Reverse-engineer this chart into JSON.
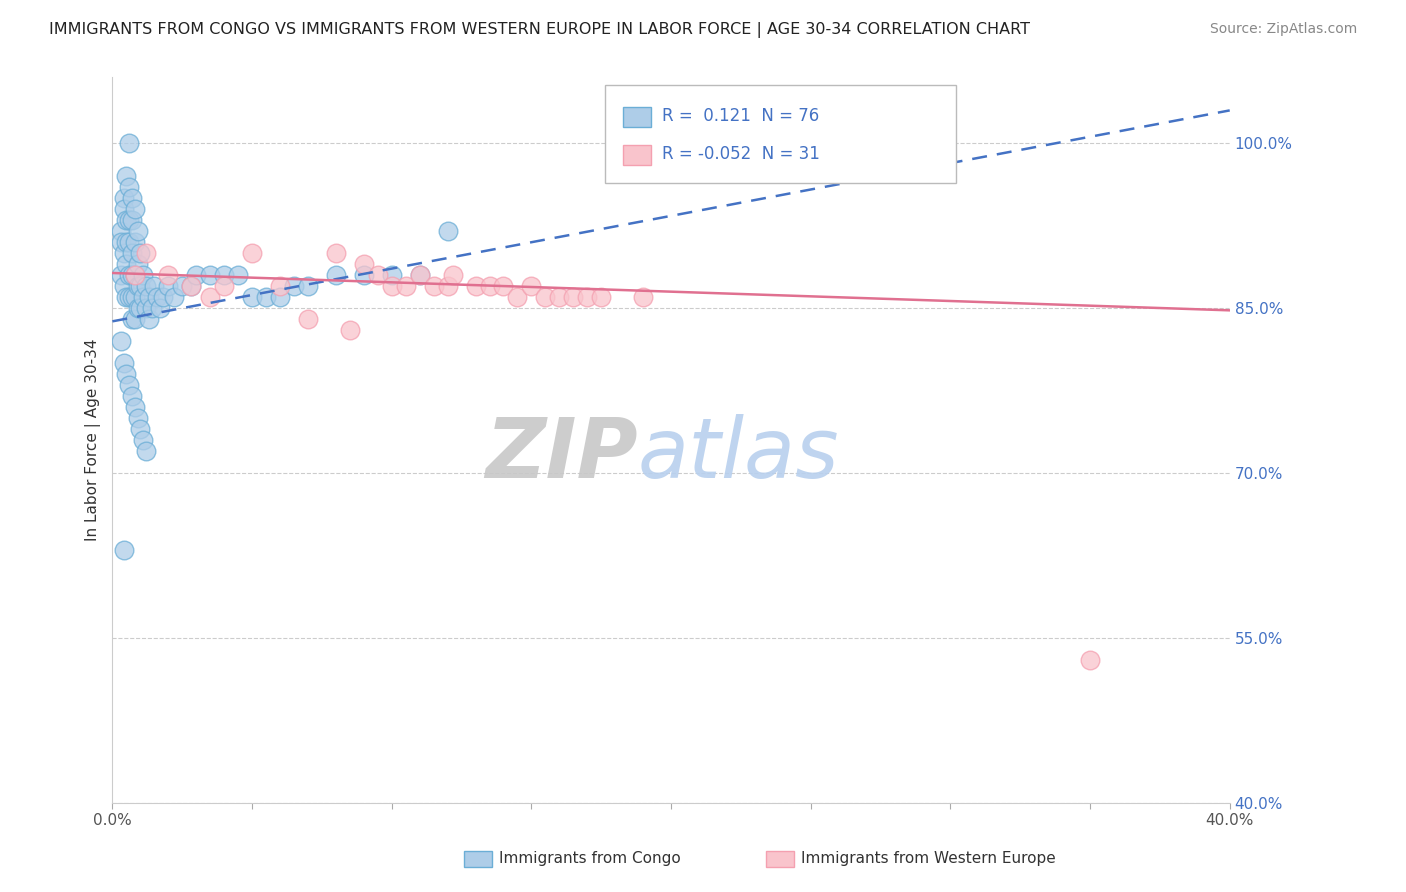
{
  "title": "IMMIGRANTS FROM CONGO VS IMMIGRANTS FROM WESTERN EUROPE IN LABOR FORCE | AGE 30-34 CORRELATION CHART",
  "source": "Source: ZipAtlas.com",
  "ylabel": "In Labor Force | Age 30-34",
  "xlim": [
    0.0,
    0.4
  ],
  "ylim": [
    0.4,
    1.06
  ],
  "xticks": [
    0.0,
    0.05,
    0.1,
    0.15,
    0.2,
    0.25,
    0.3,
    0.35,
    0.4
  ],
  "xticklabels": [
    "0.0%",
    "",
    "",
    "",
    "",
    "",
    "",
    "",
    "40.0%"
  ],
  "ytick_positions": [
    1.0,
    0.85,
    0.7,
    0.55,
    0.4
  ],
  "ytick_labels": [
    "100.0%",
    "85.0%",
    "70.0%",
    "55.0%",
    "40.0%"
  ],
  "grid_color": "#cccccc",
  "background_color": "#ffffff",
  "legend_R1": "0.121",
  "legend_N1": "76",
  "legend_R2": "-0.052",
  "legend_N2": "31",
  "legend_label1": "Immigrants from Congo",
  "legend_label2": "Immigrants from Western Europe",
  "blue_color": "#6baed6",
  "blue_fill": "#aecde8",
  "pink_color": "#f4a0b0",
  "pink_fill": "#f9c4cc",
  "trend_blue_color": "#4472c4",
  "trend_pink_color": "#e07090",
  "blue_scatter_x": [
    0.003,
    0.003,
    0.003,
    0.004,
    0.004,
    0.004,
    0.004,
    0.005,
    0.005,
    0.005,
    0.005,
    0.005,
    0.006,
    0.006,
    0.006,
    0.006,
    0.006,
    0.006,
    0.007,
    0.007,
    0.007,
    0.007,
    0.007,
    0.007,
    0.008,
    0.008,
    0.008,
    0.008,
    0.008,
    0.009,
    0.009,
    0.009,
    0.009,
    0.01,
    0.01,
    0.01,
    0.011,
    0.011,
    0.012,
    0.012,
    0.013,
    0.013,
    0.014,
    0.015,
    0.016,
    0.017,
    0.018,
    0.02,
    0.022,
    0.025,
    0.028,
    0.03,
    0.035,
    0.04,
    0.045,
    0.05,
    0.055,
    0.06,
    0.065,
    0.07,
    0.08,
    0.09,
    0.1,
    0.11,
    0.12,
    0.003,
    0.004,
    0.005,
    0.006,
    0.007,
    0.008,
    0.009,
    0.01,
    0.011,
    0.012,
    0.004
  ],
  "blue_scatter_y": [
    0.92,
    0.91,
    0.88,
    0.95,
    0.94,
    0.9,
    0.87,
    0.97,
    0.93,
    0.91,
    0.89,
    0.86,
    1.0,
    0.96,
    0.93,
    0.91,
    0.88,
    0.86,
    0.95,
    0.93,
    0.9,
    0.88,
    0.86,
    0.84,
    0.94,
    0.91,
    0.88,
    0.86,
    0.84,
    0.92,
    0.89,
    0.87,
    0.85,
    0.9,
    0.87,
    0.85,
    0.88,
    0.86,
    0.87,
    0.85,
    0.86,
    0.84,
    0.85,
    0.87,
    0.86,
    0.85,
    0.86,
    0.87,
    0.86,
    0.87,
    0.87,
    0.88,
    0.88,
    0.88,
    0.88,
    0.86,
    0.86,
    0.86,
    0.87,
    0.87,
    0.88,
    0.88,
    0.88,
    0.88,
    0.92,
    0.82,
    0.8,
    0.79,
    0.78,
    0.77,
    0.76,
    0.75,
    0.74,
    0.73,
    0.72,
    0.63
  ],
  "pink_scatter_x": [
    0.008,
    0.012,
    0.02,
    0.028,
    0.035,
    0.04,
    0.05,
    0.06,
    0.07,
    0.08,
    0.085,
    0.09,
    0.095,
    0.1,
    0.105,
    0.11,
    0.115,
    0.12,
    0.122,
    0.13,
    0.135,
    0.14,
    0.145,
    0.15,
    0.155,
    0.16,
    0.165,
    0.17,
    0.175,
    0.19,
    0.35
  ],
  "pink_scatter_y": [
    0.88,
    0.9,
    0.88,
    0.87,
    0.86,
    0.87,
    0.9,
    0.87,
    0.84,
    0.9,
    0.83,
    0.89,
    0.88,
    0.87,
    0.87,
    0.88,
    0.87,
    0.87,
    0.88,
    0.87,
    0.87,
    0.87,
    0.86,
    0.87,
    0.86,
    0.86,
    0.86,
    0.86,
    0.86,
    0.86,
    0.53
  ],
  "trend_blue_x0": 0.0,
  "trend_blue_y0": 0.838,
  "trend_blue_x1": 0.4,
  "trend_blue_y1": 1.03,
  "trend_pink_x0": 0.0,
  "trend_pink_y0": 0.882,
  "trend_pink_x1": 0.4,
  "trend_pink_y1": 0.848
}
